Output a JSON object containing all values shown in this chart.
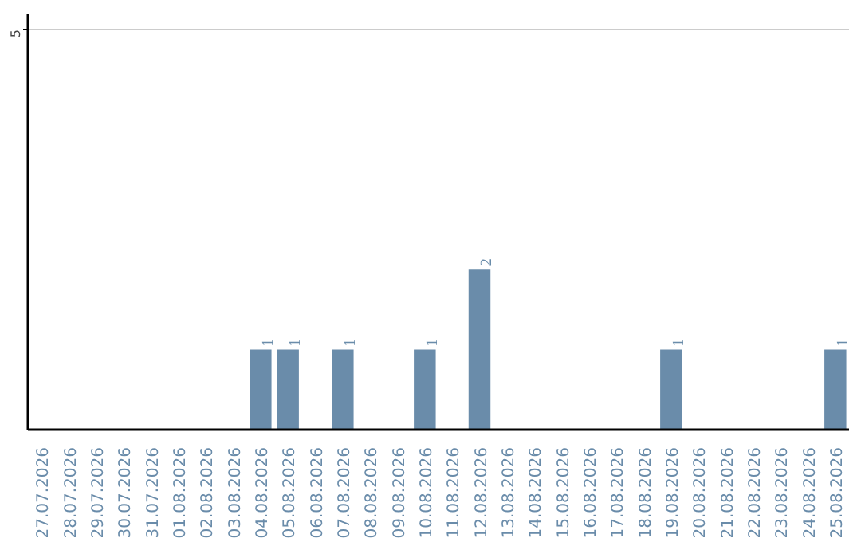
{
  "chart_data": {
    "type": "bar",
    "categories": [
      "27.07.2026",
      "28.07.2026",
      "29.07.2026",
      "30.07.2026",
      "31.07.2026",
      "01.08.2026",
      "02.08.2026",
      "03.08.2026",
      "04.08.2026",
      "05.08.2026",
      "06.08.2026",
      "07.08.2026",
      "08.08.2026",
      "09.08.2026",
      "10.08.2026",
      "11.08.2026",
      "12.08.2026",
      "13.08.2026",
      "14.08.2026",
      "15.08.2026",
      "16.08.2026",
      "17.08.2026",
      "18.08.2026",
      "19.08.2026",
      "20.08.2026",
      "21.08.2026",
      "22.08.2026",
      "23.08.2026",
      "24.08.2026",
      "25.08.2026"
    ],
    "values": [
      0,
      0,
      0,
      0,
      0,
      0,
      0,
      0,
      1,
      1,
      0,
      1,
      0,
      0,
      1,
      0,
      2,
      0,
      0,
      0,
      0,
      0,
      0,
      1,
      0,
      0,
      0,
      0,
      0,
      1
    ],
    "value_labels": [
      null,
      null,
      null,
      null,
      null,
      null,
      null,
      null,
      "1",
      "1",
      null,
      "1",
      null,
      null,
      "1",
      null,
      "2",
      null,
      null,
      null,
      null,
      null,
      null,
      "1",
      null,
      null,
      null,
      null,
      null,
      "1"
    ],
    "color": "#6a8caa",
    "ylim": [
      0,
      5.2
    ],
    "yticks": [
      5
    ],
    "grid": "y"
  }
}
